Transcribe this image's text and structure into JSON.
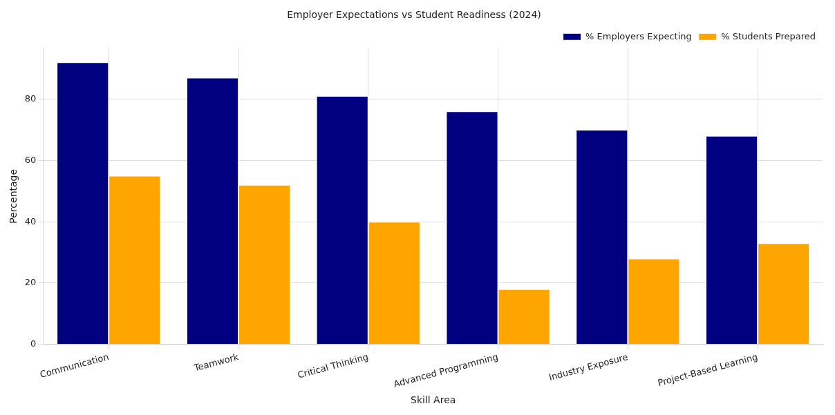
{
  "chart_data": {
    "type": "bar",
    "title": "Employer Expectations vs Student Readiness (2024)",
    "xlabel": "Skill Area",
    "ylabel": "Percentage",
    "categories": [
      "Communication",
      "Teamwork",
      "Critical Thinking",
      "Advanced Programming",
      "Industry Exposure",
      "Project-Based Learning"
    ],
    "series": [
      {
        "name": "% Employers Expecting",
        "color": "#000080",
        "values": [
          92,
          87,
          81,
          76,
          70,
          68
        ]
      },
      {
        "name": "% Students Prepared",
        "color": "#ffa500",
        "values": [
          55,
          52,
          40,
          18,
          28,
          33
        ]
      }
    ],
    "ylim": [
      0,
      96.6
    ],
    "yticks": [
      0,
      20,
      40,
      60,
      80
    ],
    "grid": true,
    "legend": "top right"
  }
}
